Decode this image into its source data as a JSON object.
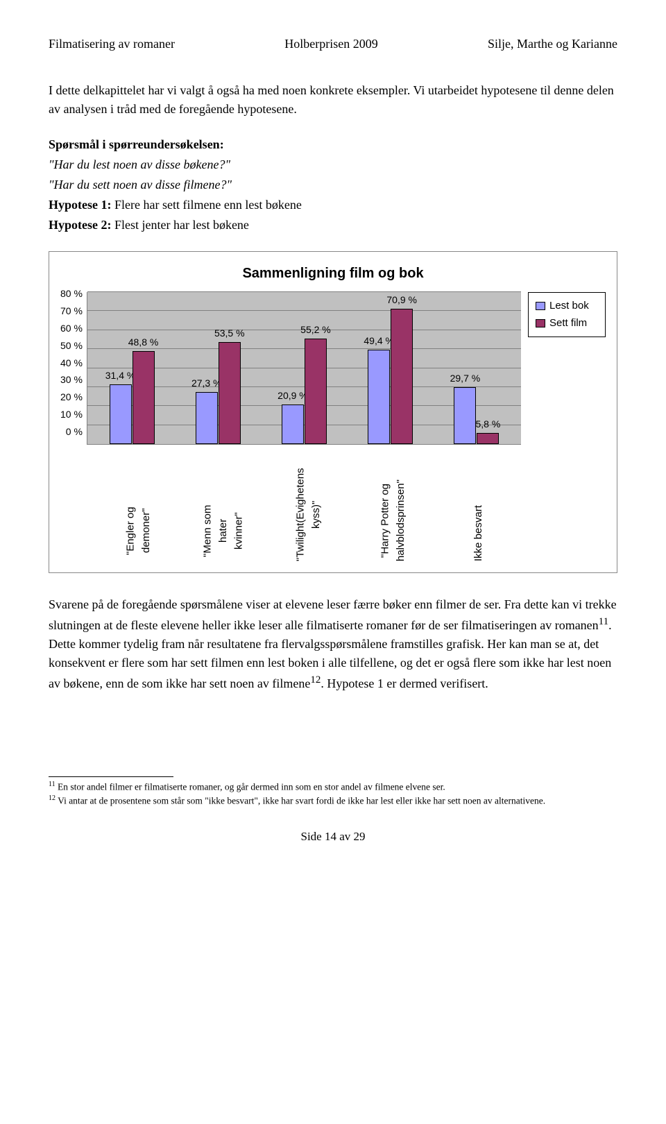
{
  "header": {
    "left": "Filmatisering av romaner",
    "center": "Holberprisen 2009",
    "right": "Silje, Marthe og Karianne"
  },
  "para1": "I dette delkapittelet har vi valgt å også ha med noen konkrete eksempler. Vi utarbeidet hypotesene til denne delen av analysen i tråd med de foregående hypotesene.",
  "spm": {
    "heading": "Spørsmål i spørreundersøkelsen:",
    "q1": "\"Har du lest noen av disse bøkene?\"",
    "q2": "\"Har du sett noen av disse filmene?\"",
    "h1_label": "Hypotese 1:",
    "h1_text": " Flere har sett filmene enn lest bøkene",
    "h2_label": "Hypotese 2:",
    "h2_text": " Flest jenter har lest bøkene"
  },
  "chart": {
    "title": "Sammenligning film og bok",
    "ymax": 80,
    "ytick_step": 10,
    "plot_bg": "#c0c0c0",
    "grid_color": "#808080",
    "colors": {
      "lest": "#9999ff",
      "sett": "#993366"
    },
    "legend": [
      {
        "label": "Lest bok",
        "color": "#9999ff"
      },
      {
        "label": "Sett film",
        "color": "#993366"
      }
    ],
    "categories": [
      "\"Engler og demoner\"",
      "\"Menn som hater kvinner\"",
      "\"Twilight(Evighetens kyss)\"",
      "\"Harry Potter og halvblodsprinsen\"",
      "Ikke besvart"
    ],
    "series": [
      {
        "lest": 31.4,
        "sett": 48.8,
        "lest_label": "31,4 %",
        "sett_label": "48,8 %"
      },
      {
        "lest": 27.3,
        "sett": 53.5,
        "lest_label": "27,3 %",
        "sett_label": "53,5 %"
      },
      {
        "lest": 20.9,
        "sett": 55.2,
        "lest_label": "20,9 %",
        "sett_label": "55,2 %"
      },
      {
        "lest": 49.4,
        "sett": 70.9,
        "lest_label": "49,4 %",
        "sett_label": "70,9 %"
      },
      {
        "lest": 29.7,
        "sett": 5.8,
        "lest_label": "29,7 %",
        "sett_label": "5,8 %"
      }
    ],
    "yticks": [
      "80 %",
      "70 %",
      "60 %",
      "50 %",
      "40 %",
      "30 %",
      "20 %",
      "10 %",
      "0 %"
    ]
  },
  "para2": "Svarene på de foregående spørsmålene viser at elevene leser færre bøker enn filmer de ser. Fra dette kan vi trekke slutningen at de fleste elevene heller ikke leser alle filmatiserte romaner før de ser filmatiseringen av romanen",
  "fn11_mark": "11",
  "para2b": ". Dette kommer tydelig fram når resultatene fra flervalgsspørsmålene framstilles grafisk. Her kan man se at, det konsekvent er flere som har sett filmen enn lest boken i alle tilfellene, og det er også flere som ikke har lest noen av bøkene, enn de som ikke har sett noen av filmene",
  "fn12_mark": "12",
  "para2c": ". Hypotese 1 er dermed verifisert.",
  "footnotes": {
    "fn11": " En stor andel filmer er filmatiserte romaner, og går dermed inn som en stor andel av filmene elvene ser.",
    "fn12": " Vi antar at de prosentene som står som \"ikke besvart\", ikke har svart fordi de ikke har lest eller ikke har sett noen av alternativene."
  },
  "page_footer": "Side 14 av 29"
}
